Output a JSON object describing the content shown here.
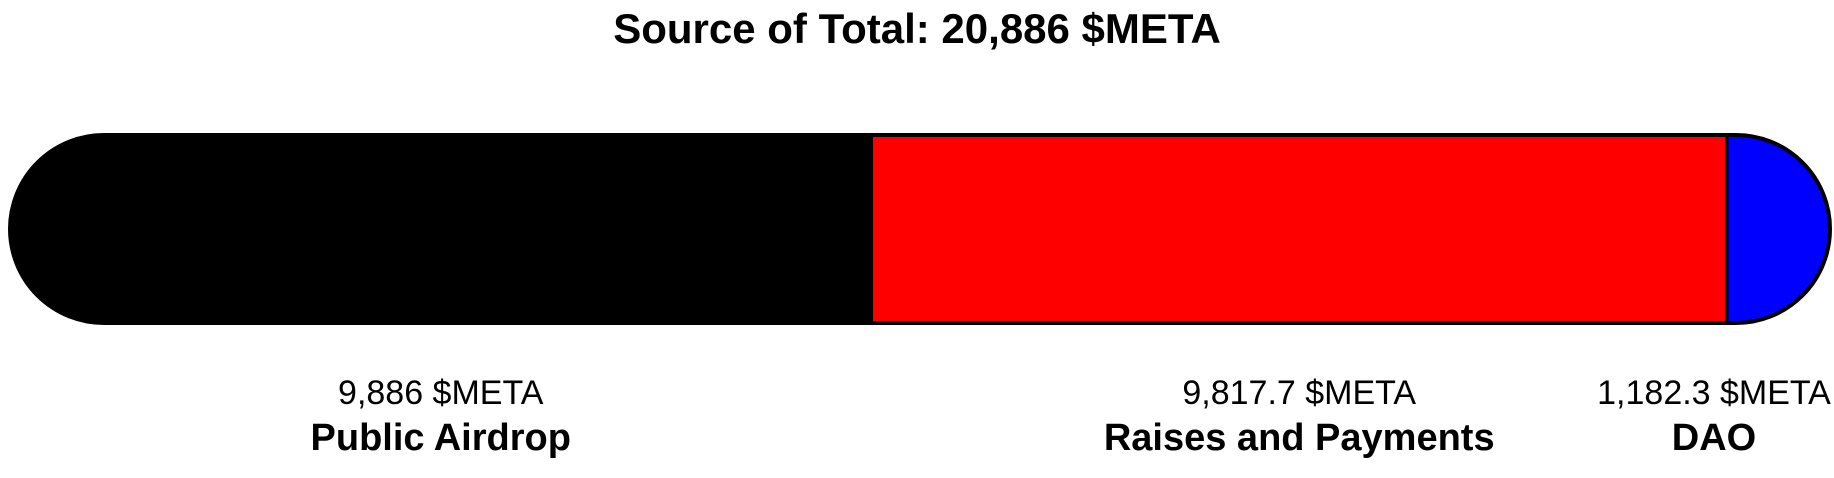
{
  "chart_data": {
    "type": "bar",
    "orientation": "horizontal-stacked",
    "title": "Source of Total: 20,886 $META",
    "total": 20886,
    "categories": [
      "Public Airdrop",
      "Raises and Payments",
      "DAO"
    ],
    "values": [
      9886,
      9817.7,
      1182.3
    ],
    "value_labels": [
      "9,886 $META",
      "9,817.7 $META",
      "1,182.3 $META"
    ],
    "colors": [
      "#000000",
      "#ff0000",
      "#0000ff"
    ],
    "unit": "$META",
    "legend": "none",
    "grid": false
  }
}
